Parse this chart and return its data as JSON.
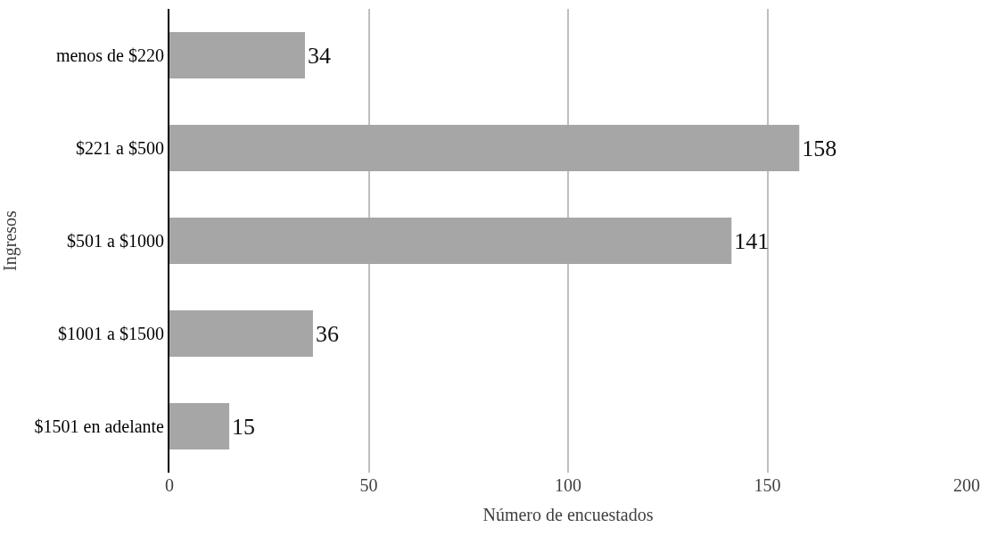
{
  "chart_data": {
    "type": "bar",
    "orientation": "horizontal",
    "xlabel": "Número de encuestados",
    "ylabel": "Ingresos",
    "categories": [
      "menos de $220",
      "$221 a $500",
      "$501 a $1000",
      "$1001 a $1500",
      "$1501 en adelante"
    ],
    "values": [
      34,
      158,
      141,
      36,
      15
    ],
    "color": "#a6a6a6",
    "xlim": [
      0,
      200
    ],
    "xticks": [
      0,
      50,
      100,
      150,
      200
    ],
    "grid": "x",
    "data_labels": true
  }
}
